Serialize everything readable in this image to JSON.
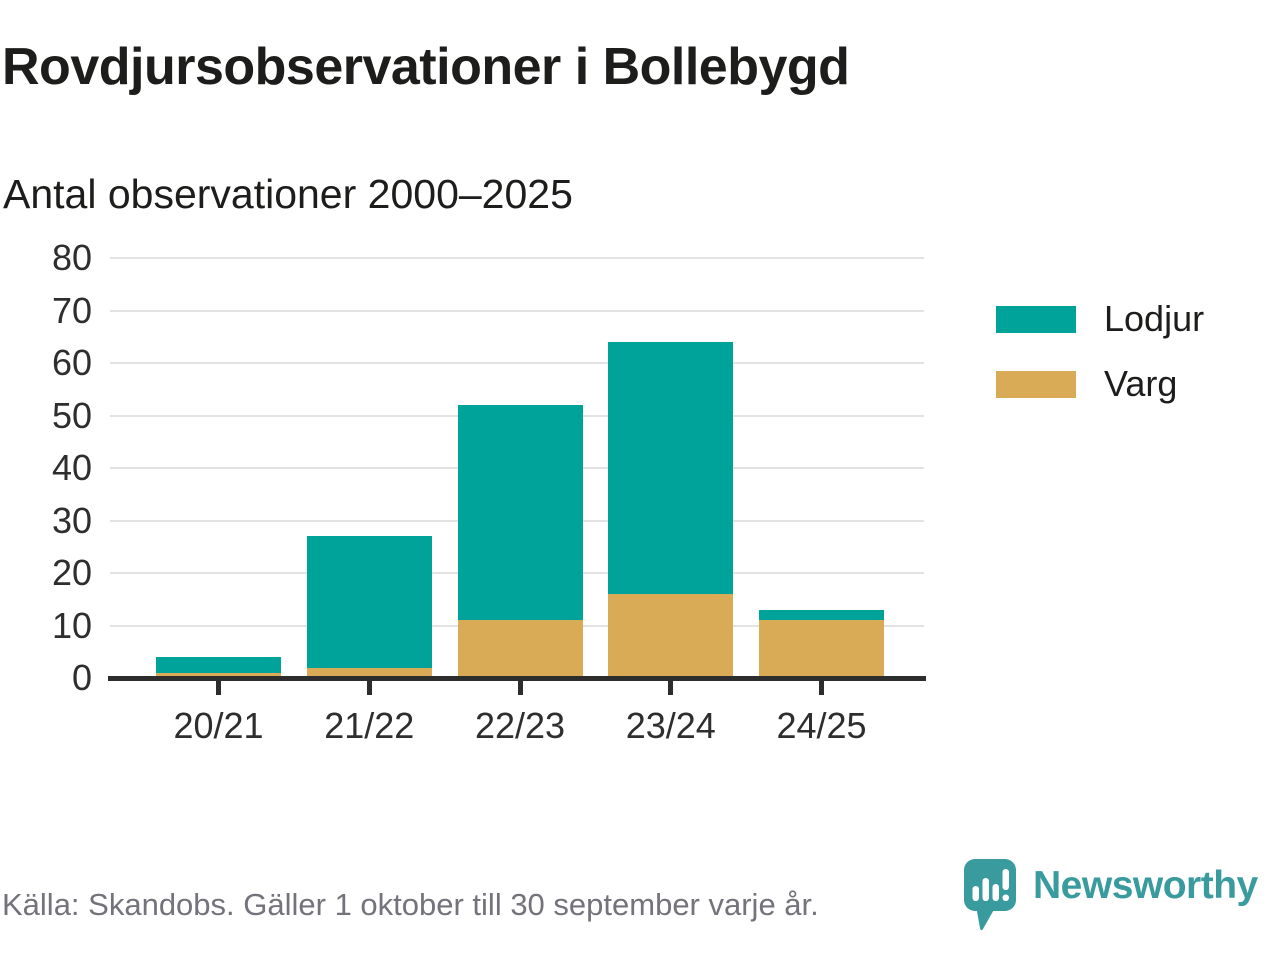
{
  "title": "Rovdjursobservationer i Bollebygd",
  "subtitle": "Antal observationer 2000–2025",
  "chart_data": {
    "type": "bar",
    "stacked": true,
    "title": "Rovdjursobservationer i Bollebygd",
    "subtitle": "Antal observationer 2000–2025",
    "categories": [
      "20/21",
      "21/22",
      "22/23",
      "23/24",
      "24/25"
    ],
    "series": [
      {
        "name": "Lodjur",
        "color": "#00a39a",
        "values": [
          3,
          25,
          41,
          48,
          2
        ]
      },
      {
        "name": "Varg",
        "color": "#d9ab57",
        "values": [
          1,
          2,
          11,
          16,
          11
        ]
      }
    ],
    "totals": [
      4,
      27,
      52,
      64,
      13
    ],
    "ylim": [
      0,
      80
    ],
    "yticks": [
      0,
      10,
      20,
      30,
      40,
      50,
      60,
      70,
      80
    ],
    "xlabel": "",
    "ylabel": "",
    "grid": true,
    "legend_position": "right"
  },
  "footer": {
    "source": "Källa: Skandobs. Gäller 1 oktober till 30 september varje år.",
    "brand": "Newsworthy"
  },
  "colors": {
    "lodjur": "#00a39a",
    "varg": "#d9ab57",
    "text": "#1d1d1b",
    "axis_text": "#2e2e2e",
    "gridline": "#e2e2e2",
    "axis_line": "#2d2d2d",
    "source_text": "#73737b",
    "brand_teal": "#3a9b9e",
    "background": "#ffffff"
  }
}
